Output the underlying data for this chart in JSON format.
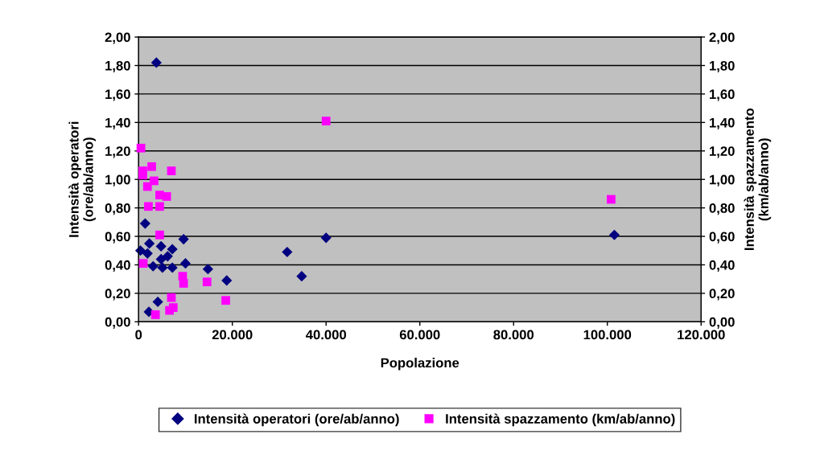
{
  "chart_data": {
    "type": "scatter",
    "xlabel": "Popolazione",
    "ylabel": "Intensità operatori\n(ore/ab/anno)",
    "y2label": "Intensità spazzamento\n(km/ab/anno)",
    "xlim": [
      0,
      120000
    ],
    "xticks": [
      {
        "value": 0,
        "label": "0"
      },
      {
        "value": 20000,
        "label": "20.000"
      },
      {
        "value": 40000,
        "label": "40.000"
      },
      {
        "value": 60000,
        "label": "60.000"
      },
      {
        "value": 80000,
        "label": "80.000"
      },
      {
        "value": 100000,
        "label": "100.000"
      },
      {
        "value": 120000,
        "label": "120.000"
      }
    ],
    "ylim": [
      0,
      2
    ],
    "yticks": [
      {
        "value": 0,
        "label": "0,00"
      },
      {
        "value": 0.2,
        "label": "0,20"
      },
      {
        "value": 0.4,
        "label": "0,40"
      },
      {
        "value": 0.6,
        "label": "0,60"
      },
      {
        "value": 0.8,
        "label": "0,80"
      },
      {
        "value": 1.0,
        "label": "1,00"
      },
      {
        "value": 1.2,
        "label": "1,20"
      },
      {
        "value": 1.4,
        "label": "1,40"
      },
      {
        "value": 1.6,
        "label": "1,60"
      },
      {
        "value": 1.8,
        "label": "1,80"
      },
      {
        "value": 2.0,
        "label": "2,00"
      }
    ],
    "y2lim": [
      0,
      2
    ],
    "y2ticks": [
      {
        "value": 0,
        "label": "0,00"
      },
      {
        "value": 0.2,
        "label": "0,20"
      },
      {
        "value": 0.4,
        "label": "0,40"
      },
      {
        "value": 0.6,
        "label": "0,60"
      },
      {
        "value": 0.8,
        "label": "0,80"
      },
      {
        "value": 1.0,
        "label": "1,00"
      },
      {
        "value": 1.2,
        "label": "1,20"
      },
      {
        "value": 1.4,
        "label": "1,40"
      },
      {
        "value": 1.6,
        "label": "1,60"
      },
      {
        "value": 1.8,
        "label": "1,80"
      },
      {
        "value": 2.0,
        "label": "2,00"
      }
    ],
    "grid": "y",
    "legend": "bottom",
    "series": [
      {
        "name": "Intensità operatori (ore/ab/anno)",
        "color": "#000080",
        "marker": "diamond",
        "x": [
          3800,
          1400,
          9600,
          2300,
          1900,
          4800,
          7200,
          6200,
          4800,
          3100,
          5100,
          7200,
          10000,
          14800,
          18800,
          4100,
          2200,
          400,
          31700,
          34800,
          40000,
          101500
        ],
        "values": [
          1.82,
          0.69,
          0.58,
          0.55,
          0.48,
          0.53,
          0.51,
          0.46,
          0.44,
          0.39,
          0.38,
          0.38,
          0.41,
          0.37,
          0.29,
          0.14,
          0.07,
          0.5,
          0.49,
          0.32,
          0.59,
          0.61
        ]
      },
      {
        "name": "Intensità spazzamento (km/ab/anno)",
        "color": "#ff00ff",
        "marker": "square",
        "axis": "y2",
        "x": [
          500,
          900,
          900,
          2800,
          7000,
          3300,
          1900,
          4500,
          6000,
          2100,
          4500,
          4500,
          1000,
          9400,
          9600,
          14600,
          18600,
          7000,
          7400,
          6600,
          3600,
          40000,
          100800
        ],
        "values": [
          1.22,
          1.06,
          1.03,
          1.09,
          1.06,
          0.99,
          0.95,
          0.89,
          0.88,
          0.81,
          0.81,
          0.61,
          0.41,
          0.32,
          0.27,
          0.28,
          0.15,
          0.17,
          0.1,
          0.08,
          0.05,
          1.41,
          0.86
        ]
      }
    ]
  }
}
